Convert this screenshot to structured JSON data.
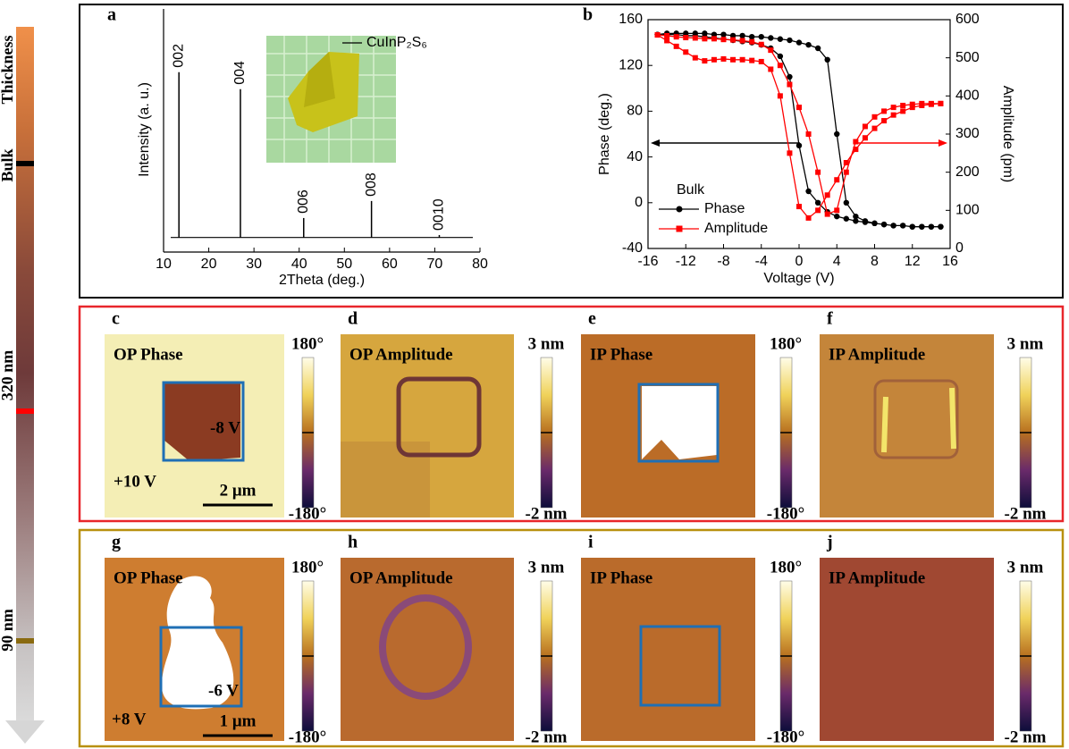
{
  "thickness_bar": {
    "title": "Thickness",
    "labels": [
      "Bulk",
      "320 nm",
      "90 nm"
    ]
  },
  "chart_data": [
    {
      "panel": "a",
      "type": "stem",
      "xlabel": "2Theta (deg.)",
      "ylabel": "Intensity (a. u.)",
      "series": [
        {
          "name": "CuInP₂S₆",
          "color": "#000000",
          "x": [
            13.4,
            27,
            41,
            56,
            71
          ],
          "values": [
            74,
            67,
            14,
            21,
            7
          ],
          "labels": [
            "002",
            "004",
            "006",
            "008",
            "0010"
          ]
        }
      ],
      "baseline": 6,
      "xlim": [
        10,
        80
      ],
      "xticks": [
        10,
        20,
        30,
        40,
        50,
        60,
        70,
        80
      ],
      "ylim": [
        0,
        100
      ]
    },
    {
      "panel": "b",
      "type": "line",
      "legend_title": "Bulk",
      "xlabel": "Voltage (V)",
      "ylabel": "Phase (deg.)",
      "y2label": "Amplitude (pm)",
      "x": [
        -15,
        -14,
        -13,
        -12,
        -11,
        -10,
        -9,
        -8,
        -7,
        -6,
        -5,
        -4,
        -3,
        -2,
        -1,
        0,
        1,
        2,
        3,
        4,
        5,
        6,
        7,
        8,
        9,
        10,
        11,
        12,
        13,
        14,
        15,
        15,
        14,
        13,
        12,
        11,
        10,
        9,
        8,
        7,
        6,
        5,
        4,
        3,
        2,
        1,
        0,
        -1,
        -2,
        -3,
        -4,
        -5,
        -6,
        -7,
        -8,
        -9,
        -10,
        -11,
        -12,
        -13,
        -14,
        -15
      ],
      "series": [
        {
          "name": "Phase",
          "color": "#000000",
          "marker": "circle",
          "values": [
            147,
            148,
            148,
            148,
            148,
            148,
            147,
            147,
            146,
            146,
            145,
            145,
            144,
            143,
            142,
            140,
            138,
            135,
            125,
            60,
            0,
            -12,
            -16,
            -18,
            -19,
            -20,
            -20,
            -21,
            -21,
            -21,
            -21,
            -21,
            -21,
            -21,
            -21,
            -20,
            -20,
            -19,
            -18,
            -17,
            -16,
            -14,
            -12,
            -8,
            0,
            10,
            50,
            110,
            128,
            135,
            138,
            140,
            141,
            142,
            143,
            144,
            145,
            146,
            146,
            147,
            147,
            147
          ]
        },
        {
          "name": "Amplitude",
          "color": "#ff0000",
          "marker": "square",
          "axis": "y2",
          "values": [
            560,
            558,
            555,
            553,
            552,
            550,
            550,
            548,
            547,
            545,
            542,
            535,
            520,
            480,
            430,
            370,
            300,
            200,
            90,
            100,
            200,
            280,
            320,
            345,
            360,
            370,
            375,
            378,
            380,
            380,
            380,
            380,
            378,
            375,
            370,
            360,
            350,
            335,
            315,
            290,
            260,
            225,
            180,
            140,
            100,
            80,
            110,
            250,
            400,
            470,
            490,
            493,
            495,
            495,
            497,
            495,
            492,
            500,
            515,
            530,
            545,
            560
          ]
        }
      ],
      "xlim": [
        -16,
        16
      ],
      "xticks": [
        -16,
        -12,
        -8,
        -4,
        0,
        4,
        8,
        12,
        16
      ],
      "ylim": [
        -40,
        160
      ],
      "yticks": [
        -40,
        0,
        40,
        80,
        120,
        160
      ],
      "y2lim": [
        0,
        600
      ],
      "y2ticks": [
        0,
        100,
        200,
        300,
        400,
        500,
        600
      ]
    }
  ],
  "afm_panels": [
    {
      "letter": "c",
      "title": "OP Phase",
      "colorbar": [
        "180°",
        "-180°"
      ],
      "annotations": [
        "-8 V",
        "+10 V"
      ],
      "scale_bar": "2 μm"
    },
    {
      "letter": "d",
      "title": "OP Amplitude",
      "colorbar": [
        "3 nm",
        "-2 nm"
      ]
    },
    {
      "letter": "e",
      "title": "IP Phase",
      "colorbar": [
        "180°",
        "-180°"
      ]
    },
    {
      "letter": "f",
      "title": "IP Amplitude",
      "colorbar": [
        "3 nm",
        "-2 nm"
      ]
    },
    {
      "letter": "g",
      "title": "OP Phase",
      "colorbar": [
        "180°",
        "-180°"
      ],
      "annotations": [
        "-6 V",
        "+8 V"
      ],
      "scale_bar": "1 μm"
    },
    {
      "letter": "h",
      "title": "OP Amplitude",
      "colorbar": [
        "3 nm",
        "-2 nm"
      ]
    },
    {
      "letter": "i",
      "title": "IP Phase",
      "colorbar": [
        "180°",
        "-180°"
      ]
    },
    {
      "letter": "j",
      "title": "IP Amplitude",
      "colorbar": [
        "3 nm",
        "-2 nm"
      ]
    }
  ]
}
